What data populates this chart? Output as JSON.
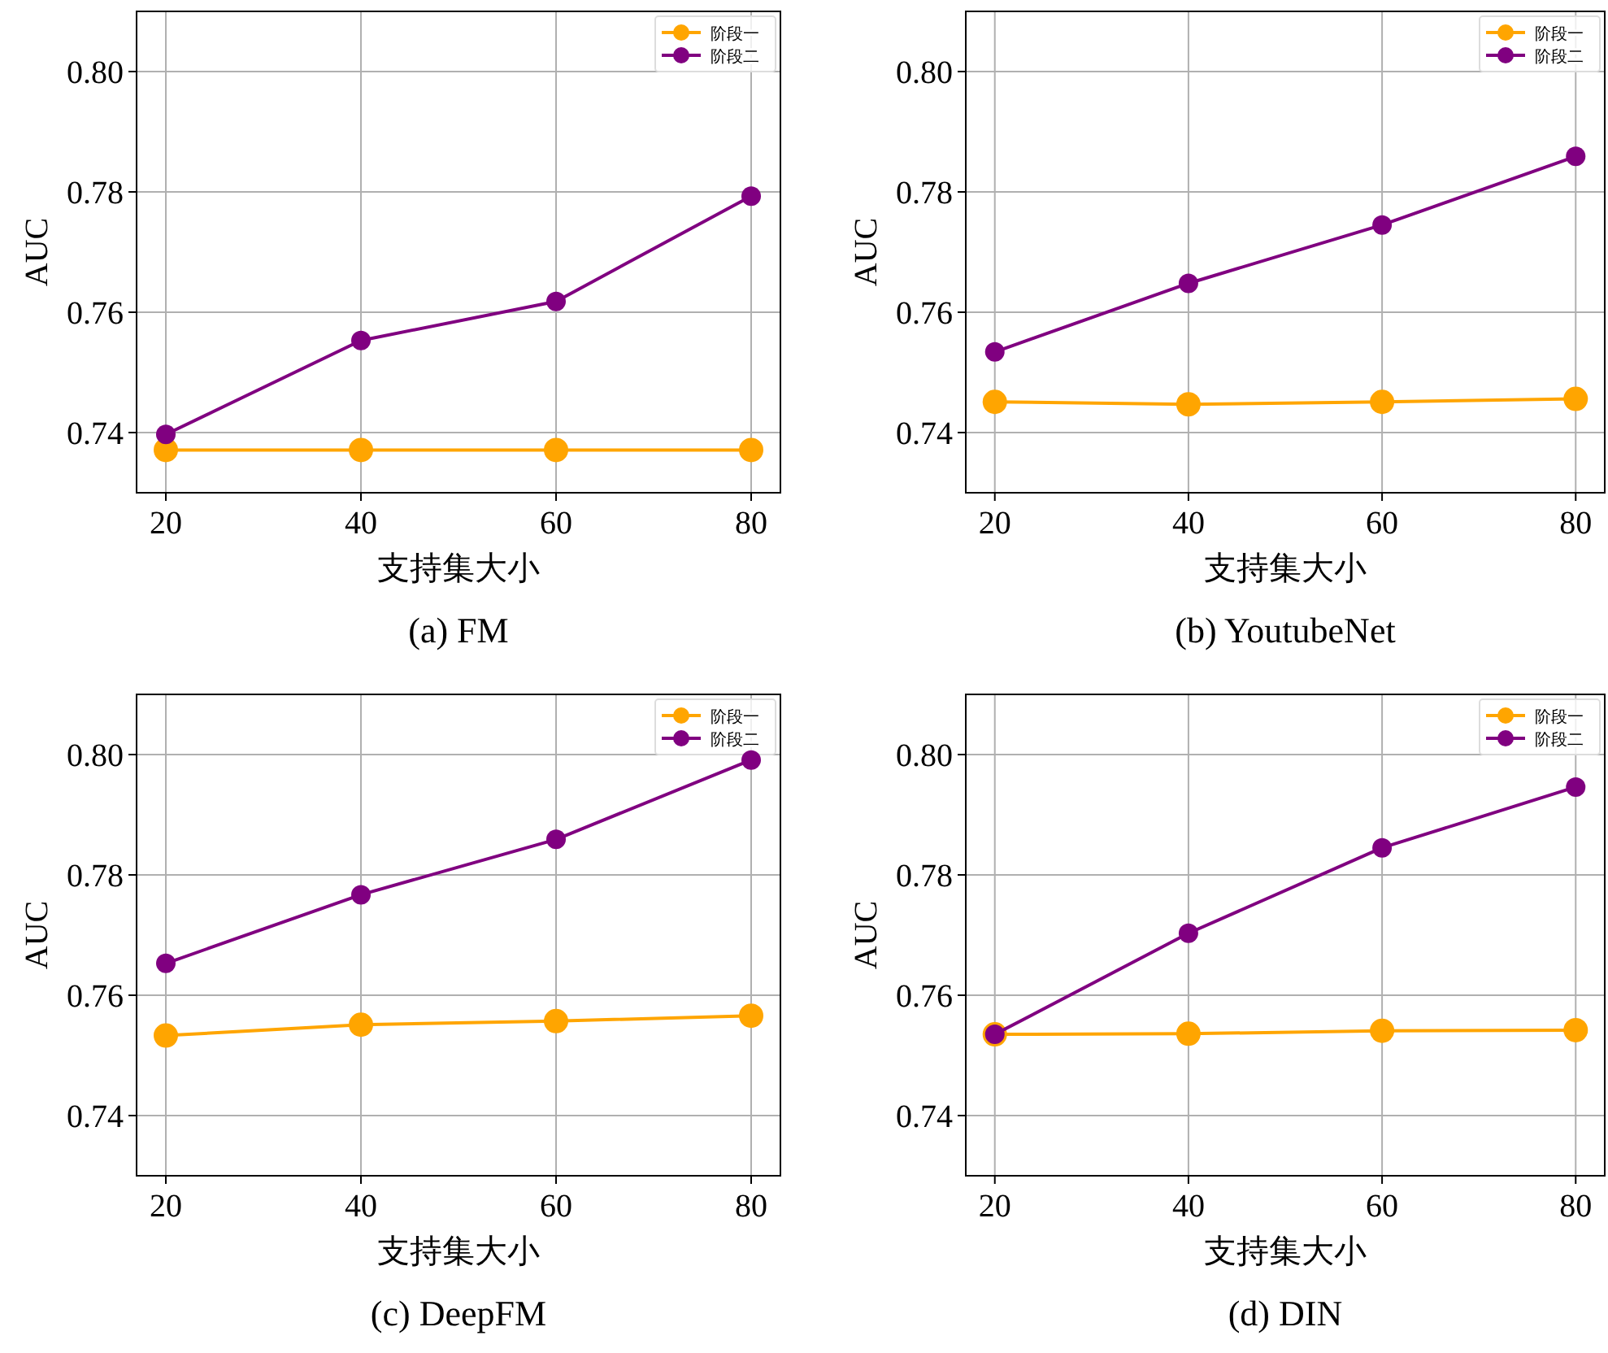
{
  "chart_data": [
    {
      "type": "line",
      "title": "(a) FM",
      "xlabel": "支持集大小",
      "ylabel": "AUC",
      "x": [
        20,
        40,
        60,
        80
      ],
      "xlim": [
        17,
        83
      ],
      "ylim": [
        0.73,
        0.81
      ],
      "xticks": [
        20,
        40,
        60,
        80
      ],
      "yticks": [
        {
          "value": 0.74,
          "label": "0.74"
        },
        {
          "value": 0.76,
          "label": "0.76"
        },
        {
          "value": 0.78,
          "label": "0.78"
        },
        {
          "value": 0.8,
          "label": "0.80"
        }
      ],
      "grid": true,
      "legend": "top right",
      "marker": "circle",
      "series": [
        {
          "name": "阶段一",
          "color": "#ffa500",
          "values": [
            0.7371,
            0.7371,
            0.7371,
            0.7371
          ]
        },
        {
          "name": "阶段二",
          "color": "#800080",
          "values": [
            0.7397,
            0.7553,
            0.7618,
            0.7793
          ]
        }
      ]
    },
    {
      "type": "line",
      "title": "(b) YoutubeNet",
      "xlabel": "支持集大小",
      "ylabel": "AUC",
      "x": [
        20,
        40,
        60,
        80
      ],
      "xlim": [
        17,
        83
      ],
      "ylim": [
        0.73,
        0.81
      ],
      "xticks": [
        20,
        40,
        60,
        80
      ],
      "yticks": [
        {
          "value": 0.74,
          "label": "0.74"
        },
        {
          "value": 0.76,
          "label": "0.76"
        },
        {
          "value": 0.78,
          "label": "0.78"
        },
        {
          "value": 0.8,
          "label": "0.80"
        }
      ],
      "grid": true,
      "legend": "top right",
      "marker": "circle",
      "series": [
        {
          "name": "阶段一",
          "color": "#ffa500",
          "values": [
            0.7451,
            0.7447,
            0.7451,
            0.7456
          ]
        },
        {
          "name": "阶段二",
          "color": "#800080",
          "values": [
            0.7534,
            0.7648,
            0.7745,
            0.7859
          ]
        }
      ]
    },
    {
      "type": "line",
      "title": "(c) DeepFM",
      "xlabel": "支持集大小",
      "ylabel": "AUC",
      "x": [
        20,
        40,
        60,
        80
      ],
      "xlim": [
        17,
        83
      ],
      "ylim": [
        0.73,
        0.81
      ],
      "xticks": [
        20,
        40,
        60,
        80
      ],
      "yticks": [
        {
          "value": 0.74,
          "label": "0.74"
        },
        {
          "value": 0.76,
          "label": "0.76"
        },
        {
          "value": 0.78,
          "label": "0.78"
        },
        {
          "value": 0.8,
          "label": "0.80"
        }
      ],
      "grid": true,
      "legend": "top right",
      "marker": "circle",
      "series": [
        {
          "name": "阶段一",
          "color": "#ffa500",
          "values": [
            0.7533,
            0.7551,
            0.7557,
            0.7566
          ]
        },
        {
          "name": "阶段二",
          "color": "#800080",
          "values": [
            0.7653,
            0.7767,
            0.7859,
            0.7991
          ]
        }
      ]
    },
    {
      "type": "line",
      "title": "(d) DIN",
      "xlabel": "支持集大小",
      "ylabel": "AUC",
      "x": [
        20,
        40,
        60,
        80
      ],
      "xlim": [
        17,
        83
      ],
      "ylim": [
        0.73,
        0.81
      ],
      "xticks": [
        20,
        40,
        60,
        80
      ],
      "yticks": [
        {
          "value": 0.74,
          "label": "0.74"
        },
        {
          "value": 0.76,
          "label": "0.76"
        },
        {
          "value": 0.78,
          "label": "0.78"
        },
        {
          "value": 0.8,
          "label": "0.80"
        }
      ],
      "grid": true,
      "legend": "top right",
      "marker": "circle",
      "series": [
        {
          "name": "阶段一",
          "color": "#ffa500",
          "values": [
            0.7535,
            0.7536,
            0.7541,
            0.7542
          ]
        },
        {
          "name": "阶段二",
          "color": "#800080",
          "values": [
            0.7535,
            0.7703,
            0.7845,
            0.7946
          ]
        }
      ]
    }
  ]
}
